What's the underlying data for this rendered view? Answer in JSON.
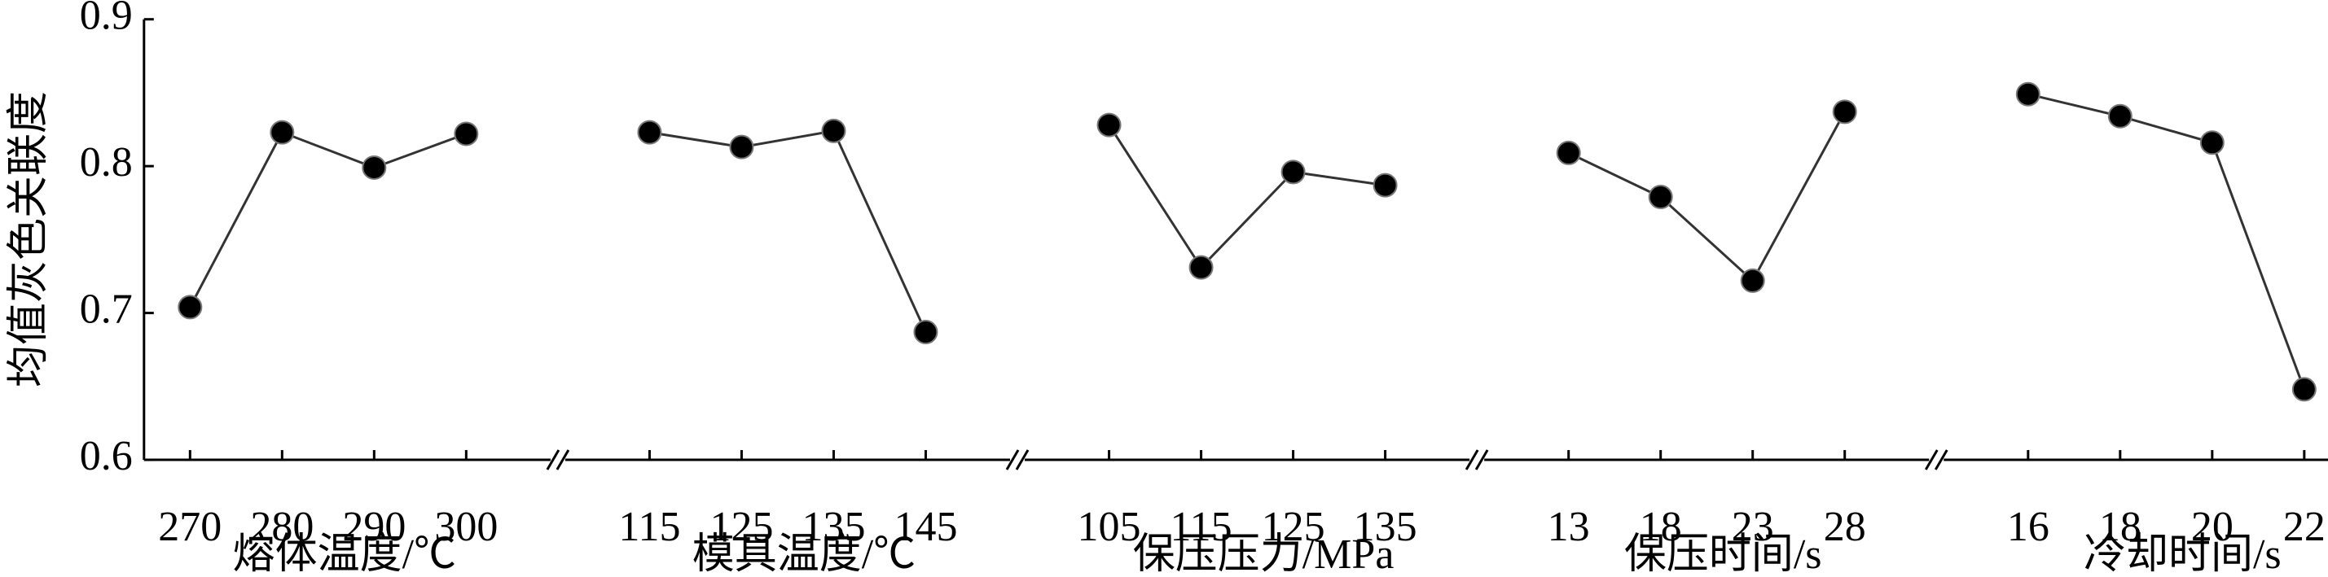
{
  "chart_data": {
    "type": "line",
    "ylabel": "均值灰色关联度",
    "ylim": [
      0.6,
      0.9
    ],
    "yticks": [
      0.6,
      0.7,
      0.8,
      0.9
    ],
    "color": "#333333",
    "marker_color": "#000000",
    "groups": [
      {
        "name": "熔体温度/℃",
        "categories": [
          "270",
          "280",
          "290",
          "300"
        ],
        "values": [
          0.704,
          0.823,
          0.799,
          0.822
        ]
      },
      {
        "name": "模具温度/℃",
        "categories": [
          "115",
          "125",
          "135",
          "145"
        ],
        "values": [
          0.823,
          0.813,
          0.824,
          0.687
        ]
      },
      {
        "name": "保压压力/MPa",
        "categories": [
          "105",
          "115",
          "125",
          "135"
        ],
        "values": [
          0.828,
          0.731,
          0.796,
          0.787
        ]
      },
      {
        "name": "保压时间/s",
        "categories": [
          "13",
          "18",
          "23",
          "28"
        ],
        "values": [
          0.809,
          0.779,
          0.722,
          0.837
        ]
      },
      {
        "name": "冷却时间/s",
        "categories": [
          "16",
          "18",
          "20",
          "22"
        ],
        "values": [
          0.849,
          0.834,
          0.816,
          0.648
        ]
      }
    ]
  }
}
